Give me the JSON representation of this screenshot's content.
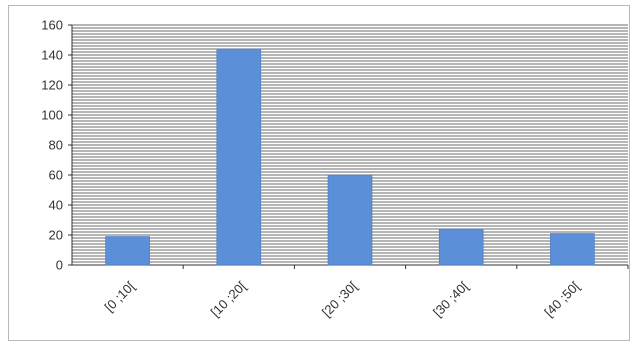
{
  "chart_data": {
    "type": "bar",
    "categories": [
      "[0 ;10[",
      "[10 ;20[",
      "[20 ;30[",
      "[30 ;40[",
      "[40 ;50["
    ],
    "values": [
      19,
      144,
      60,
      24,
      21
    ],
    "ylim": [
      0,
      160
    ],
    "yticks": [
      0,
      20,
      40,
      60,
      80,
      100,
      120,
      140,
      160
    ],
    "minor_gridline_step": 2,
    "grid": true,
    "title": "",
    "xlabel": "",
    "ylabel": "",
    "colors": {
      "bar": "#5b8fd8",
      "bar_edge": "#4a78bb",
      "grid": "#3a3a3a",
      "axis": "#333333"
    }
  }
}
